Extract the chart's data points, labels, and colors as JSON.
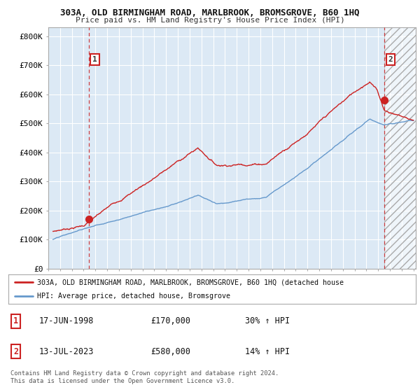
{
  "title_line1": "303A, OLD BIRMINGHAM ROAD, MARLBROOK, BROMSGROVE, B60 1HQ",
  "title_line2": "Price paid vs. HM Land Registry's House Price Index (HPI)",
  "ylabel_ticks": [
    "£0",
    "£100K",
    "£200K",
    "£300K",
    "£400K",
    "£500K",
    "£600K",
    "£700K",
    "£800K"
  ],
  "ytick_values": [
    0,
    100000,
    200000,
    300000,
    400000,
    500000,
    600000,
    700000,
    800000
  ],
  "ylim": [
    0,
    830000
  ],
  "xlim_start": 1995.3,
  "xlim_end": 2026.2,
  "xticks": [
    1995,
    1996,
    1997,
    1998,
    1999,
    2000,
    2001,
    2002,
    2003,
    2004,
    2005,
    2006,
    2007,
    2008,
    2009,
    2010,
    2011,
    2012,
    2013,
    2014,
    2015,
    2016,
    2017,
    2018,
    2019,
    2020,
    2021,
    2022,
    2023,
    2024,
    2025,
    2026
  ],
  "red_line_color": "#cc2222",
  "blue_line_color": "#6699cc",
  "chart_bg_color": "#dce9f5",
  "point1_x": 1998.46,
  "point1_y": 170000,
  "point2_x": 2023.54,
  "point2_y": 580000,
  "legend_red_label": "303A, OLD BIRMINGHAM ROAD, MARLBROOK, BROMSGROVE, B60 1HQ (detached house",
  "legend_blue_label": "HPI: Average price, detached house, Bromsgrove",
  "table_row1": [
    "1",
    "17-JUN-1998",
    "£170,000",
    "30% ↑ HPI"
  ],
  "table_row2": [
    "2",
    "13-JUL-2023",
    "£580,000",
    "14% ↑ HPI"
  ],
  "footer": "Contains HM Land Registry data © Crown copyright and database right 2024.\nThis data is licensed under the Open Government Licence v3.0.",
  "background_color": "#ffffff",
  "grid_color": "#ffffff",
  "hatch_region_start": 2023.54,
  "box_edge_color": "#cc2222"
}
